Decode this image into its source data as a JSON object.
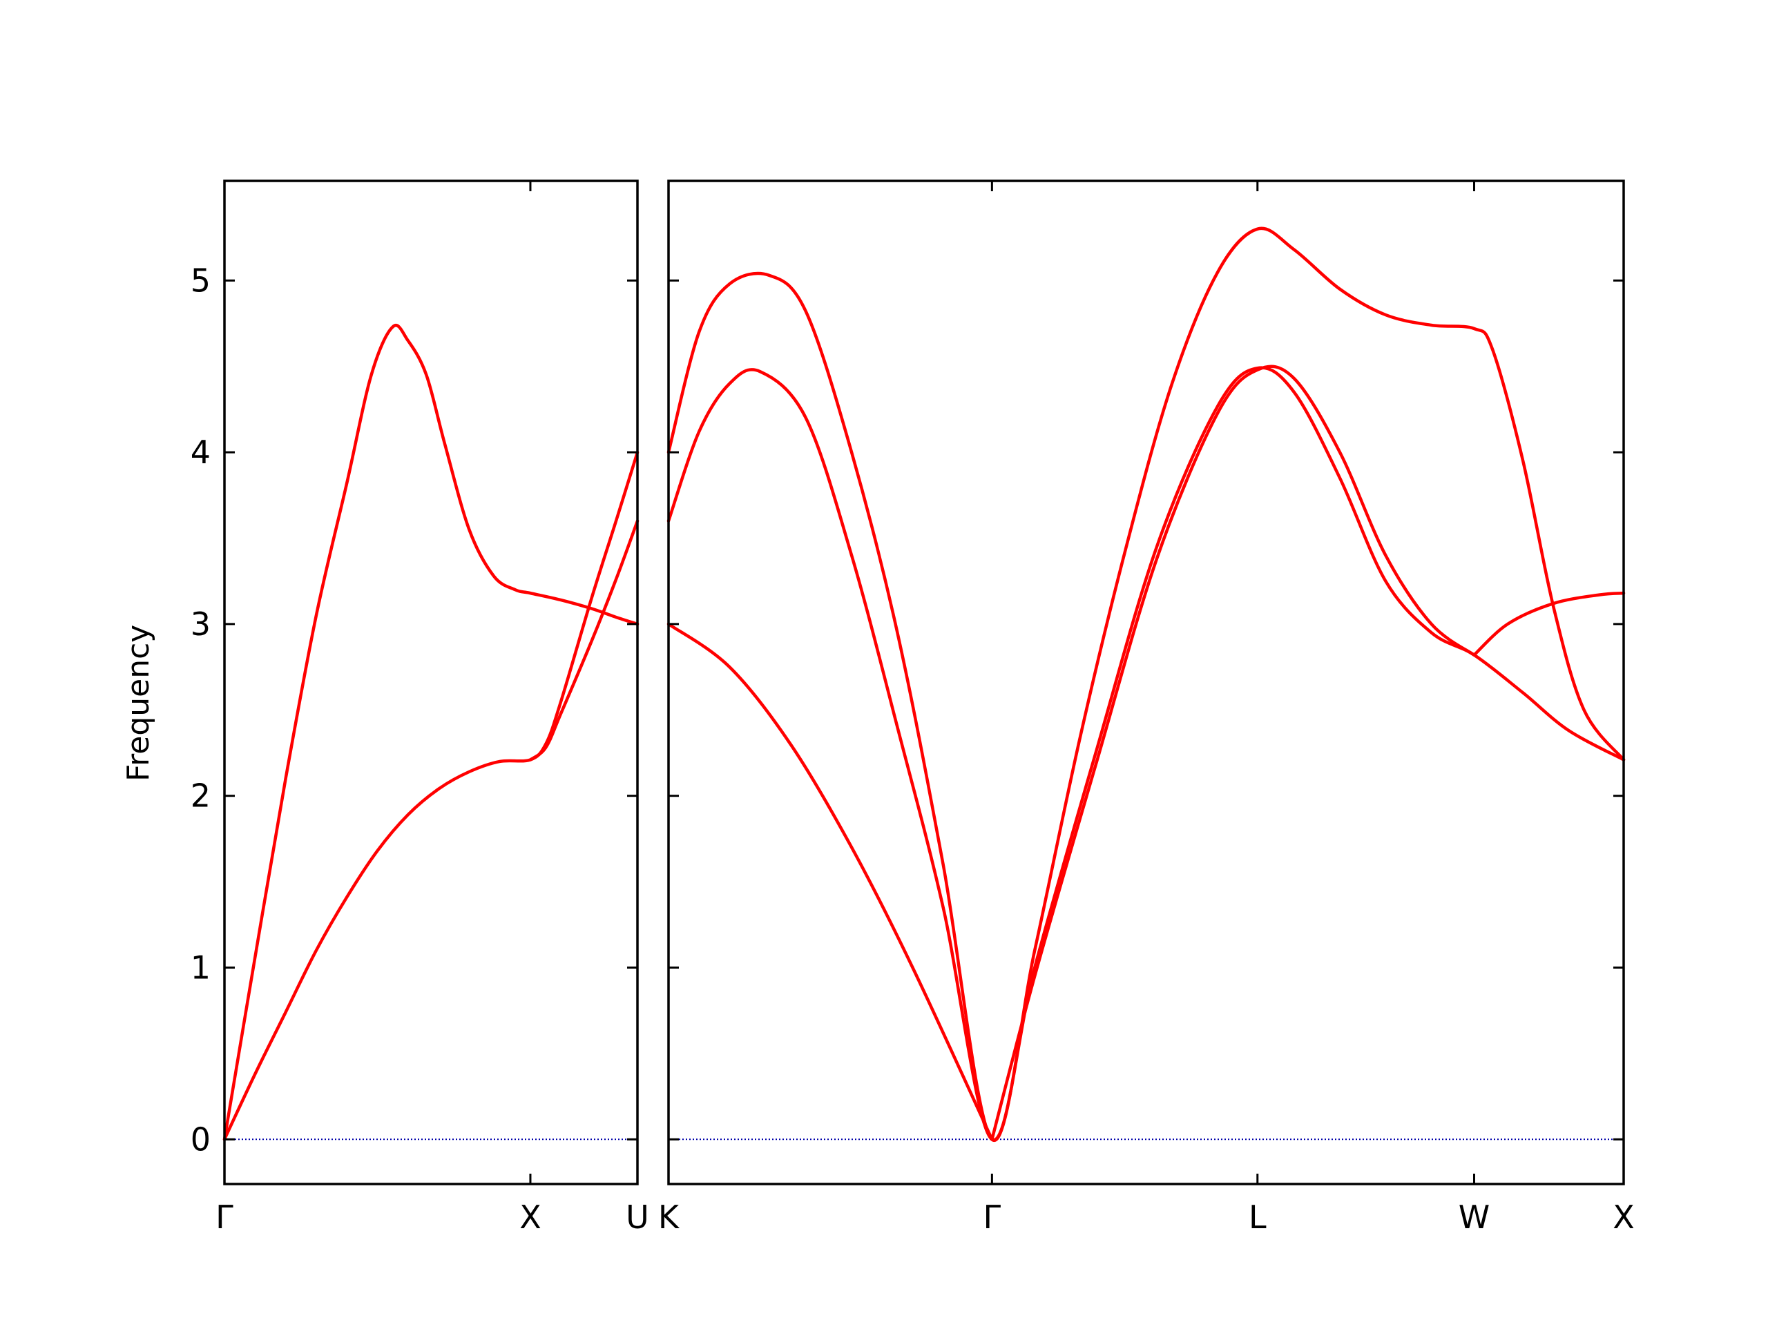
{
  "chart_data": {
    "type": "line",
    "ylabel": "Frequency",
    "ylim": [
      -0.26,
      5.58
    ],
    "yticks": [
      0,
      1,
      2,
      3,
      4,
      5
    ],
    "zero_line_color": "#0000aa",
    "band_color": "#ff0000",
    "panels": [
      {
        "xlim": [
          0,
          1.35
        ],
        "xticks": [
          {
            "pos": 0,
            "label": "Γ"
          },
          {
            "pos": 1.0,
            "label": "X"
          },
          {
            "pos": 1.35,
            "label": "U"
          }
        ],
        "bands": [
          {
            "name": "",
            "points": [
              [
                0,
                0
              ],
              [
                0.1,
                1.06
              ],
              [
                0.2,
                2.1
              ],
              [
                0.3,
                3.05
              ],
              [
                0.4,
                3.82
              ],
              [
                0.48,
                4.45
              ],
              [
                0.55,
                4.73
              ],
              [
                0.6,
                4.65
              ],
              [
                0.66,
                4.45
              ],
              [
                0.72,
                4.05
              ],
              [
                0.8,
                3.55
              ],
              [
                0.88,
                3.28
              ],
              [
                0.95,
                3.2
              ],
              [
                1.0,
                3.18
              ],
              [
                1.1,
                3.14
              ],
              [
                1.2,
                3.09
              ],
              [
                1.28,
                3.04
              ],
              [
                1.35,
                3.0
              ]
            ]
          },
          {
            "name": "",
            "points": [
              [
                0,
                0
              ],
              [
                0.1,
                0.38
              ],
              [
                0.2,
                0.74
              ],
              [
                0.3,
                1.1
              ],
              [
                0.4,
                1.41
              ],
              [
                0.5,
                1.68
              ],
              [
                0.6,
                1.89
              ],
              [
                0.7,
                2.04
              ],
              [
                0.8,
                2.14
              ],
              [
                0.9,
                2.2
              ],
              [
                1.0,
                2.21
              ],
              [
                1.05,
                2.3
              ],
              [
                1.1,
                2.55
              ],
              [
                1.2,
                3.15
              ],
              [
                1.28,
                3.6
              ],
              [
                1.35,
                4.0
              ]
            ]
          },
          {
            "name": "",
            "points": [
              [
                1.0,
                2.21
              ],
              [
                1.05,
                2.28
              ],
              [
                1.1,
                2.48
              ],
              [
                1.2,
                2.9
              ],
              [
                1.28,
                3.26
              ],
              [
                1.35,
                3.6
              ]
            ]
          }
        ]
      },
      {
        "xlim": [
          0,
          3.13
        ],
        "xticks": [
          {
            "pos": 0,
            "label": "K"
          },
          {
            "pos": 1.06,
            "label": "Γ"
          },
          {
            "pos": 1.93,
            "label": "L"
          },
          {
            "pos": 2.64,
            "label": "W"
          },
          {
            "pos": 3.13,
            "label": "X"
          }
        ],
        "bands": [
          {
            "name": "",
            "points": [
              [
                0,
                4.0
              ],
              [
                0.1,
                4.7
              ],
              [
                0.2,
                4.98
              ],
              [
                0.33,
                5.03
              ],
              [
                0.45,
                4.82
              ],
              [
                0.6,
                4.0
              ],
              [
                0.75,
                2.95
              ],
              [
                0.9,
                1.6
              ],
              [
                1.06,
                0
              ],
              [
                1.2,
                1.1
              ],
              [
                1.35,
                2.35
              ],
              [
                1.5,
                3.45
              ],
              [
                1.65,
                4.4
              ],
              [
                1.8,
                5.05
              ],
              [
                1.93,
                5.3
              ],
              [
                2.05,
                5.18
              ],
              [
                2.2,
                4.95
              ],
              [
                2.35,
                4.8
              ],
              [
                2.5,
                4.74
              ],
              [
                2.64,
                4.72
              ],
              [
                2.7,
                4.6
              ],
              [
                2.8,
                3.95
              ],
              [
                2.9,
                3.1
              ],
              [
                3.0,
                2.5
              ],
              [
                3.13,
                2.21
              ]
            ]
          },
          {
            "name": "",
            "points": [
              [
                0,
                3.6
              ],
              [
                0.1,
                4.12
              ],
              [
                0.2,
                4.4
              ],
              [
                0.3,
                4.47
              ],
              [
                0.45,
                4.2
              ],
              [
                0.6,
                3.4
              ],
              [
                0.75,
                2.4
              ],
              [
                0.9,
                1.35
              ],
              [
                1.06,
                0
              ],
              [
                1.2,
                1.0
              ],
              [
                1.4,
                2.25
              ],
              [
                1.6,
                3.45
              ],
              [
                1.8,
                4.27
              ],
              [
                1.93,
                4.49
              ],
              [
                2.05,
                4.35
              ],
              [
                2.2,
                3.85
              ],
              [
                2.35,
                3.25
              ],
              [
                2.5,
                2.95
              ],
              [
                2.64,
                2.82
              ],
              [
                2.8,
                2.6
              ],
              [
                2.95,
                2.38
              ],
              [
                3.13,
                2.21
              ]
            ]
          },
          {
            "name": "",
            "points": [
              [
                0,
                3.0
              ],
              [
                0.2,
                2.75
              ],
              [
                0.4,
                2.3
              ],
              [
                0.6,
                1.7
              ],
              [
                0.8,
                1.0
              ],
              [
                1.06,
                0
              ]
            ]
          },
          {
            "name": "",
            "points": [
              [
                1.06,
                0
              ],
              [
                1.2,
                0.95
              ],
              [
                1.4,
                2.18
              ],
              [
                1.6,
                3.38
              ],
              [
                1.8,
                4.23
              ],
              [
                1.93,
                4.48
              ],
              [
                2.05,
                4.43
              ],
              [
                2.2,
                4.0
              ],
              [
                2.35,
                3.4
              ],
              [
                2.5,
                3.0
              ],
              [
                2.64,
                2.82
              ]
            ]
          },
          {
            "name": "",
            "points": [
              [
                2.64,
                2.82
              ],
              [
                2.75,
                3.0
              ],
              [
                2.9,
                3.12
              ],
              [
                3.05,
                3.17
              ],
              [
                3.13,
                3.18
              ]
            ]
          }
        ]
      }
    ]
  }
}
